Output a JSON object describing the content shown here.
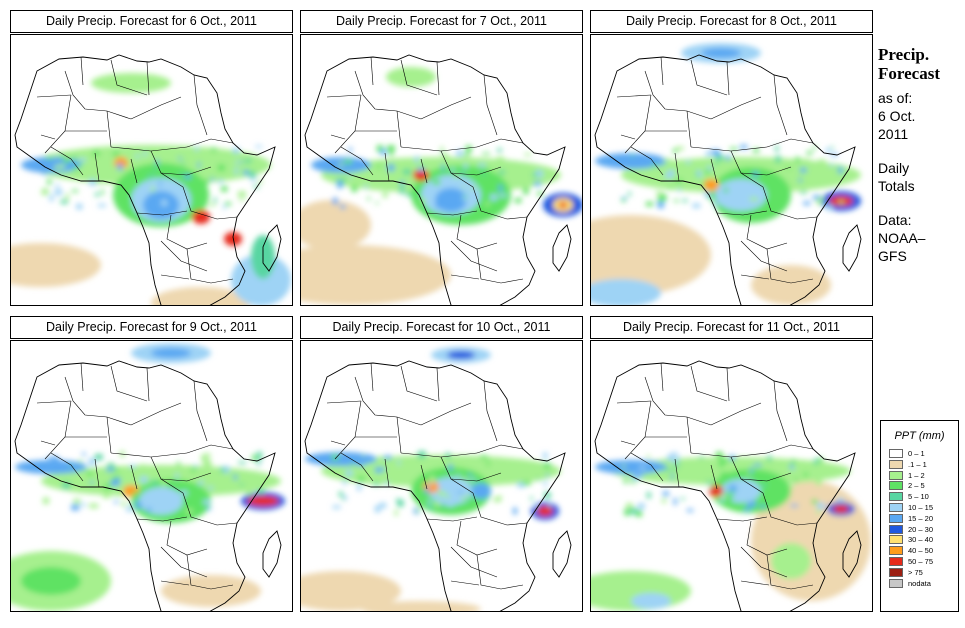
{
  "panels": [
    {
      "title": "Daily Precip. Forecast for  6 Oct., 2011"
    },
    {
      "title": "Daily Precip. Forecast for  7 Oct., 2011"
    },
    {
      "title": "Daily Precip. Forecast for  8 Oct., 2011"
    },
    {
      "title": "Daily Precip. Forecast for  9 Oct., 2011"
    },
    {
      "title": "Daily Precip. Forecast for  10 Oct., 2011"
    },
    {
      "title": "Daily Precip. Forecast for  11 Oct., 2011"
    }
  ],
  "side": {
    "title_line1": "Precip.",
    "title_line2": "Forecast",
    "asof": "as of:",
    "date_day": "6 Oct.",
    "date_year": "2011",
    "daily": "Daily",
    "totals": "Totals",
    "data_label": "Data:",
    "source1": "NOAA–",
    "source2": "GFS"
  },
  "legend": {
    "title": "PPT (mm)",
    "items": [
      {
        "label": "0 – 1",
        "color": "#ffffff"
      },
      {
        "label": ".1 – 1",
        "color": "#eed8b0"
      },
      {
        "label": "1 – 2",
        "color": "#a6f08e"
      },
      {
        "label": "2 – 5",
        "color": "#5ee264"
      },
      {
        "label": "5 – 10",
        "color": "#58d6a2"
      },
      {
        "label": "10 – 15",
        "color": "#9ed3f5"
      },
      {
        "label": "15 – 20",
        "color": "#5aa8f2"
      },
      {
        "label": "20 – 30",
        "color": "#1f58df"
      },
      {
        "label": "30 – 40",
        "color": "#ffe070"
      },
      {
        "label": "40 – 50",
        "color": "#ff9c1a"
      },
      {
        "label": "50 – 75",
        "color": "#e62a1a"
      },
      {
        "label": "> 75",
        "color": "#9c1f12"
      },
      {
        "label": "nodata",
        "color": "#c7c7c7"
      }
    ]
  }
}
